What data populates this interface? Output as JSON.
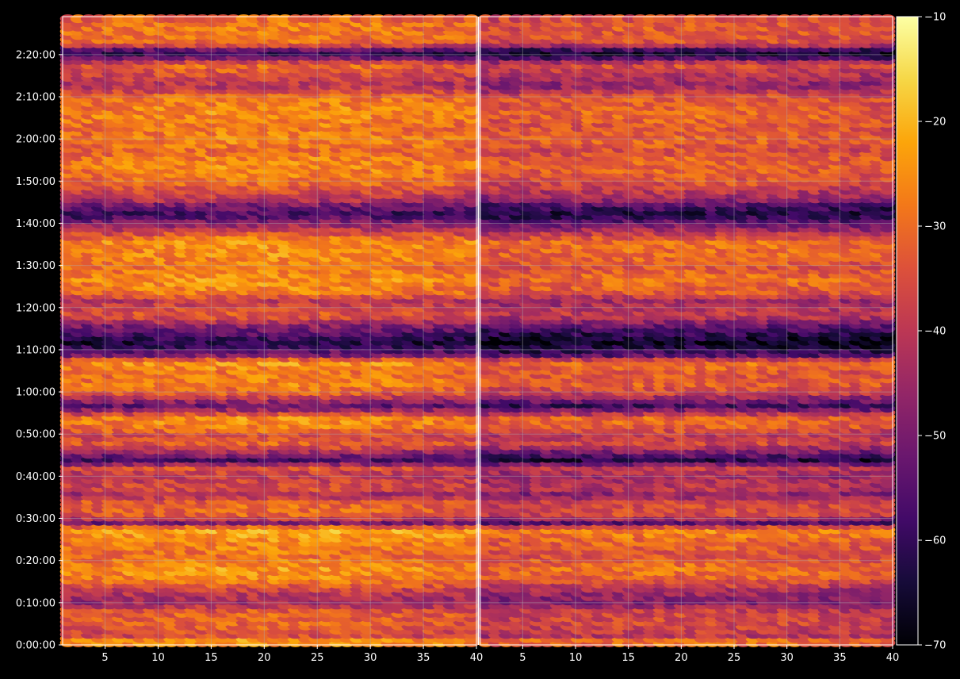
{
  "theme": {
    "background": "#000000",
    "axis_color": "#ffffff",
    "grid_color": "#b0b0b0",
    "divider_color": "#ffffff"
  },
  "chart_data": {
    "type": "heatmap",
    "title": "",
    "subplots": [
      {
        "name": "",
        "xlim": [
          1,
          40
        ],
        "xticks": [
          5,
          10,
          15,
          20,
          25,
          30,
          35,
          40
        ]
      },
      {
        "name": "",
        "xlim": [
          1,
          40
        ],
        "xticks": [
          5,
          10,
          15,
          20,
          25,
          30,
          35,
          40
        ]
      }
    ],
    "y_axis": {
      "label": "",
      "range_seconds": [
        0,
        8940
      ],
      "ticks": [
        "0:00:00",
        "0:10:00",
        "0:20:00",
        "0:30:00",
        "0:40:00",
        "0:50:00",
        "1:00:00",
        "1:10:00",
        "1:20:00",
        "1:30:00",
        "1:40:00",
        "1:50:00",
        "2:00:00",
        "2:10:00",
        "2:20:00"
      ]
    },
    "colorbar": {
      "colormap": "inferno",
      "range": [
        -70,
        -10
      ],
      "ticks": [
        "−70",
        "−60",
        "−50",
        "−40",
        "−30",
        "−20",
        "−10"
      ]
    },
    "grid": true,
    "row_profile_note_levels_dB": [
      [
        0,
        -28
      ],
      [
        90,
        -27
      ],
      [
        150,
        -38
      ],
      [
        300,
        -34
      ],
      [
        480,
        -34
      ],
      [
        630,
        -47
      ],
      [
        780,
        -41
      ],
      [
        960,
        -29
      ],
      [
        1110,
        -26
      ],
      [
        1290,
        -32
      ],
      [
        1500,
        -28
      ],
      [
        1680,
        -23
      ],
      [
        1740,
        -55
      ],
      [
        1860,
        -34
      ],
      [
        2040,
        -33
      ],
      [
        2160,
        -46
      ],
      [
        2250,
        -37
      ],
      [
        2430,
        -42
      ],
      [
        2550,
        -36
      ],
      [
        2640,
        -61
      ],
      [
        2880,
        -34
      ],
      [
        3000,
        -38
      ],
      [
        3120,
        -30
      ],
      [
        3240,
        -27
      ],
      [
        3420,
        -56
      ],
      [
        3600,
        -36
      ],
      [
        3720,
        -29
      ],
      [
        3900,
        -31
      ],
      [
        4050,
        -26
      ],
      [
        4140,
        -52
      ],
      [
        4320,
        -65
      ],
      [
        4470,
        -57
      ],
      [
        4590,
        -48
      ],
      [
        4710,
        -35
      ],
      [
        4920,
        -42
      ],
      [
        5040,
        -30
      ],
      [
        5220,
        -27
      ],
      [
        5400,
        -31
      ],
      [
        5550,
        -28
      ],
      [
        5760,
        -27
      ],
      [
        6030,
        -50
      ],
      [
        6150,
        -61
      ],
      [
        6300,
        -51
      ],
      [
        6360,
        -43
      ],
      [
        6600,
        -32
      ],
      [
        6780,
        -29
      ],
      [
        6900,
        -28
      ],
      [
        7050,
        -33
      ],
      [
        7200,
        -29
      ],
      [
        7380,
        -31
      ],
      [
        7560,
        -28
      ],
      [
        7800,
        -30
      ],
      [
        7980,
        -44
      ],
      [
        8280,
        -32
      ],
      [
        8400,
        -59
      ],
      [
        8460,
        -63
      ],
      [
        8580,
        -33
      ],
      [
        8700,
        -31
      ],
      [
        8880,
        -30
      ],
      [
        8940,
        -35
      ]
    ]
  }
}
